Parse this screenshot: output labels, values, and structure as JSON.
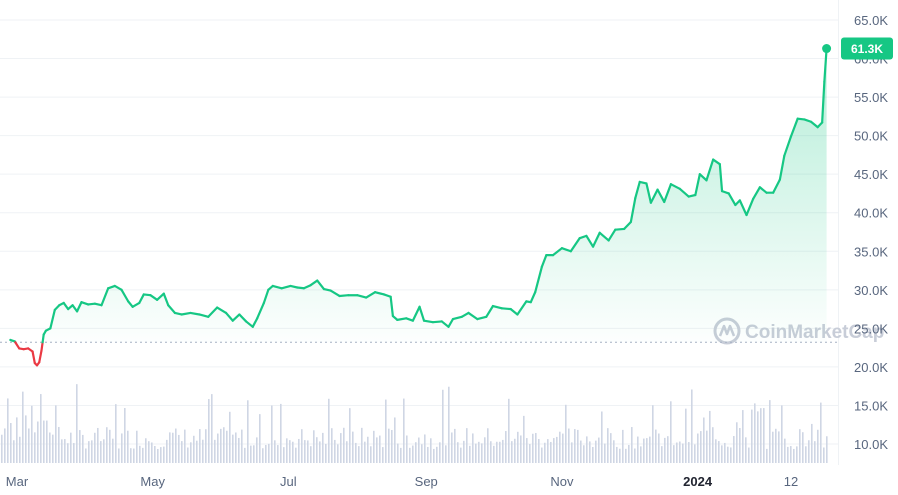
{
  "chart_data": {
    "type": "area",
    "title": "",
    "xlabel": "",
    "ylabel": "",
    "ylim": [
      8000,
      67000
    ],
    "y_ticks": [
      10000,
      15000,
      20000,
      25000,
      30000,
      35000,
      40000,
      45000,
      50000,
      55000,
      60000,
      65000
    ],
    "y_tick_labels": [
      "10.0K",
      "15.0K",
      "20.0K",
      "25.0K",
      "30.0K",
      "35.0K",
      "40.0K",
      "45.0K",
      "50.0K",
      "55.0K",
      "60.0K",
      "65.0K"
    ],
    "x_tick_labels": [
      "Mar",
      "May",
      "Jul",
      "Sep",
      "Nov",
      "2024",
      "12"
    ],
    "x_tick_dates": [
      "2023-03-01",
      "2023-05-01",
      "2023-07-01",
      "2023-09-01",
      "2023-11-01",
      "2024-01-01",
      "2024-02-12"
    ],
    "bold_tick": "2024",
    "baseline": 23200,
    "current_price_label": "61.3K",
    "current_price": 61300,
    "watermark": "CoinMarketCap",
    "colors": {
      "up": "#16c784",
      "down": "#ea3943",
      "area_top": "#16c784",
      "volume": "#cfd6e4",
      "grid": "#eff2f5",
      "baseline": "#a6b0c3"
    },
    "series": [
      {
        "values": [
          [
            "2023-02-26",
            23500
          ],
          [
            "2023-02-28",
            23300
          ],
          [
            "2023-03-02",
            22400
          ],
          [
            "2023-03-04",
            22300
          ],
          [
            "2023-03-06",
            22400
          ],
          [
            "2023-03-08",
            22000
          ],
          [
            "2023-03-09",
            20500
          ],
          [
            "2023-03-10",
            20200
          ],
          [
            "2023-03-11",
            20600
          ],
          [
            "2023-03-12",
            22100
          ],
          [
            "2023-03-13",
            24200
          ],
          [
            "2023-03-14",
            24700
          ],
          [
            "2023-03-16",
            25000
          ],
          [
            "2023-03-18",
            27400
          ],
          [
            "2023-03-20",
            28000
          ],
          [
            "2023-03-22",
            28300
          ],
          [
            "2023-03-24",
            27500
          ],
          [
            "2023-03-26",
            28000
          ],
          [
            "2023-03-28",
            27200
          ],
          [
            "2023-03-30",
            28400
          ],
          [
            "2023-04-02",
            28100
          ],
          [
            "2023-04-05",
            28200
          ],
          [
            "2023-04-08",
            28000
          ],
          [
            "2023-04-11",
            30200
          ],
          [
            "2023-04-14",
            30500
          ],
          [
            "2023-04-17",
            30000
          ],
          [
            "2023-04-20",
            28500
          ],
          [
            "2023-04-22",
            27800
          ],
          [
            "2023-04-25",
            28300
          ],
          [
            "2023-04-27",
            29400
          ],
          [
            "2023-04-30",
            29300
          ],
          [
            "2023-05-03",
            28700
          ],
          [
            "2023-05-06",
            29500
          ],
          [
            "2023-05-08",
            28000
          ],
          [
            "2023-05-11",
            27000
          ],
          [
            "2023-05-14",
            26800
          ],
          [
            "2023-05-18",
            27000
          ],
          [
            "2023-05-22",
            26800
          ],
          [
            "2023-05-26",
            26500
          ],
          [
            "2023-05-30",
            27700
          ],
          [
            "2023-06-03",
            27000
          ],
          [
            "2023-06-06",
            26000
          ],
          [
            "2023-06-09",
            26800
          ],
          [
            "2023-06-12",
            25900
          ],
          [
            "2023-06-15",
            25200
          ],
          [
            "2023-06-17",
            26300
          ],
          [
            "2023-06-20",
            28300
          ],
          [
            "2023-06-22",
            30000
          ],
          [
            "2023-06-24",
            30500
          ],
          [
            "2023-06-28",
            30200
          ],
          [
            "2023-07-02",
            30500
          ],
          [
            "2023-07-05",
            30300
          ],
          [
            "2023-07-08",
            30200
          ],
          [
            "2023-07-11",
            30600
          ],
          [
            "2023-07-14",
            31200
          ],
          [
            "2023-07-17",
            30100
          ],
          [
            "2023-07-20",
            29900
          ],
          [
            "2023-07-24",
            29200
          ],
          [
            "2023-07-28",
            29300
          ],
          [
            "2023-08-01",
            29300
          ],
          [
            "2023-08-05",
            29000
          ],
          [
            "2023-08-09",
            29700
          ],
          [
            "2023-08-13",
            29400
          ],
          [
            "2023-08-16",
            29100
          ],
          [
            "2023-08-17",
            26600
          ],
          [
            "2023-08-19",
            26100
          ],
          [
            "2023-08-23",
            26300
          ],
          [
            "2023-08-26",
            26000
          ],
          [
            "2023-08-29",
            27800
          ],
          [
            "2023-08-31",
            26000
          ],
          [
            "2023-09-04",
            25800
          ],
          [
            "2023-09-08",
            25900
          ],
          [
            "2023-09-11",
            25200
          ],
          [
            "2023-09-13",
            26200
          ],
          [
            "2023-09-17",
            26500
          ],
          [
            "2023-09-20",
            27000
          ],
          [
            "2023-09-24",
            26200
          ],
          [
            "2023-09-28",
            26500
          ],
          [
            "2023-10-01",
            27900
          ],
          [
            "2023-10-05",
            27600
          ],
          [
            "2023-10-09",
            27500
          ],
          [
            "2023-10-12",
            26800
          ],
          [
            "2023-10-16",
            28500
          ],
          [
            "2023-10-18",
            28400
          ],
          [
            "2023-10-20",
            29700
          ],
          [
            "2023-10-23",
            33000
          ],
          [
            "2023-10-25",
            34500
          ],
          [
            "2023-10-28",
            34500
          ],
          [
            "2023-11-01",
            35400
          ],
          [
            "2023-11-05",
            35000
          ],
          [
            "2023-11-09",
            36700
          ],
          [
            "2023-11-12",
            37000
          ],
          [
            "2023-11-15",
            35600
          ],
          [
            "2023-11-18",
            37400
          ],
          [
            "2023-11-22",
            36400
          ],
          [
            "2023-11-25",
            37800
          ],
          [
            "2023-11-29",
            37900
          ],
          [
            "2023-12-02",
            38800
          ],
          [
            "2023-12-04",
            41900
          ],
          [
            "2023-12-06",
            44000
          ],
          [
            "2023-12-09",
            43800
          ],
          [
            "2023-12-11",
            41300
          ],
          [
            "2023-12-14",
            43000
          ],
          [
            "2023-12-17",
            41400
          ],
          [
            "2023-12-20",
            43700
          ],
          [
            "2023-12-24",
            43100
          ],
          [
            "2023-12-28",
            42100
          ],
          [
            "2023-12-31",
            42300
          ],
          [
            "2024-01-02",
            45000
          ],
          [
            "2024-01-05",
            44200
          ],
          [
            "2024-01-08",
            46900
          ],
          [
            "2024-01-11",
            46300
          ],
          [
            "2024-01-12",
            42800
          ],
          [
            "2024-01-15",
            42500
          ],
          [
            "2024-01-18",
            41000
          ],
          [
            "2024-01-20",
            41600
          ],
          [
            "2024-01-23",
            39700
          ],
          [
            "2024-01-26",
            41800
          ],
          [
            "2024-01-29",
            43300
          ],
          [
            "2024-02-01",
            42600
          ],
          [
            "2024-02-04",
            42600
          ],
          [
            "2024-02-07",
            44300
          ],
          [
            "2024-02-09",
            47400
          ],
          [
            "2024-02-12",
            49900
          ],
          [
            "2024-02-15",
            52200
          ],
          [
            "2024-02-18",
            52100
          ],
          [
            "2024-02-21",
            51800
          ],
          [
            "2024-02-24",
            51100
          ],
          [
            "2024-02-26",
            51700
          ],
          [
            "2024-02-27",
            57000
          ],
          [
            "2024-02-28",
            61300
          ]
        ]
      }
    ],
    "volume_note": "Volume bars shown along the bottom of the chart without a labeled scale."
  }
}
